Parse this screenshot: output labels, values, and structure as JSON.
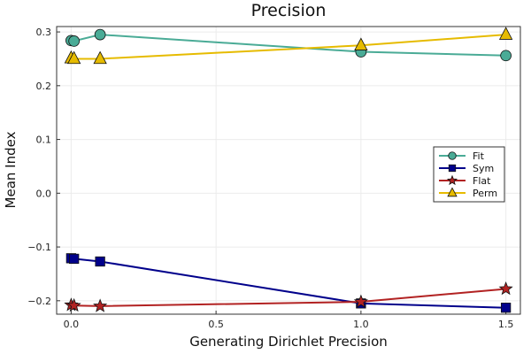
{
  "chart_data": {
    "type": "line",
    "title": "Precision",
    "xlabel": "Generating Dirichlet Precision",
    "ylabel": "Mean Index",
    "xlim": [
      -0.05,
      1.55
    ],
    "ylim": [
      -0.225,
      0.31
    ],
    "xticks": [
      0.0,
      0.5,
      1.0,
      1.5
    ],
    "xtick_labels": [
      "0.0",
      "0.5",
      "1.0",
      "1.5"
    ],
    "yticks": [
      -0.2,
      -0.1,
      0.0,
      0.1,
      0.2,
      0.3
    ],
    "ytick_labels": [
      "−0.2",
      "−0.1",
      "0.0",
      "0.1",
      "0.2",
      "0.3"
    ],
    "grid": true,
    "legend_position": "right",
    "series": [
      {
        "name": "Fit",
        "color": "#4aab96",
        "marker": "circle",
        "x": [
          0.0,
          0.01,
          0.1,
          1.0,
          1.5
        ],
        "y": [
          0.284,
          0.283,
          0.295,
          0.263,
          0.256
        ]
      },
      {
        "name": "Sym",
        "color": "#00008b",
        "marker": "square",
        "x": [
          0.0,
          0.01,
          0.1,
          1.0,
          1.5
        ],
        "y": [
          -0.121,
          -0.122,
          -0.127,
          -0.205,
          -0.213
        ]
      },
      {
        "name": "Flat",
        "color": "#b22222",
        "marker": "star",
        "x": [
          0.0,
          0.01,
          0.1,
          1.0,
          1.5
        ],
        "y": [
          -0.208,
          -0.209,
          -0.21,
          -0.202,
          -0.178
        ]
      },
      {
        "name": "Perm",
        "color": "#e6bb00",
        "marker": "triangle",
        "x": [
          0.0,
          0.01,
          0.1,
          1.0,
          1.5
        ],
        "y": [
          0.251,
          0.25,
          0.25,
          0.275,
          0.295
        ]
      }
    ]
  }
}
